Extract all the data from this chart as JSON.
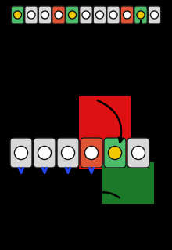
{
  "bg_color": "#000000",
  "top_row": {
    "n_cells": 11,
    "colors": [
      "#4dbd6b",
      "#d8d8d8",
      "#d8d8d8",
      "#e05535",
      "#4dbd6b",
      "#d8d8d8",
      "#d8d8d8",
      "#d8d8d8",
      "#e05535",
      "#4dbd6b",
      "#d8d8d8"
    ],
    "has_yellow": [
      true,
      false,
      false,
      false,
      true,
      false,
      false,
      false,
      false,
      true,
      false
    ],
    "has_arrow_up": [
      false,
      false,
      false,
      false,
      false,
      false,
      false,
      false,
      false,
      true,
      false
    ]
  },
  "bottom_row": {
    "n_cells": 6,
    "colors": [
      "#d8d8d8",
      "#d8d8d8",
      "#d8d8d8",
      "#e05535",
      "#4dbd6b",
      "#d8d8d8"
    ],
    "has_yellow": [
      false,
      false,
      false,
      false,
      true,
      false
    ],
    "has_blue_arrow": [
      true,
      true,
      true,
      true,
      false,
      false
    ]
  },
  "red_bg_color": "#dd1111",
  "green_bg_color": "#1a7a2a",
  "cell_border_color": "#1a1a1a",
  "circle_fill": "#ffffff",
  "circle_border": "#111111",
  "yellow_color": "#f0c800",
  "blue_arrow_color": "#2244ee"
}
